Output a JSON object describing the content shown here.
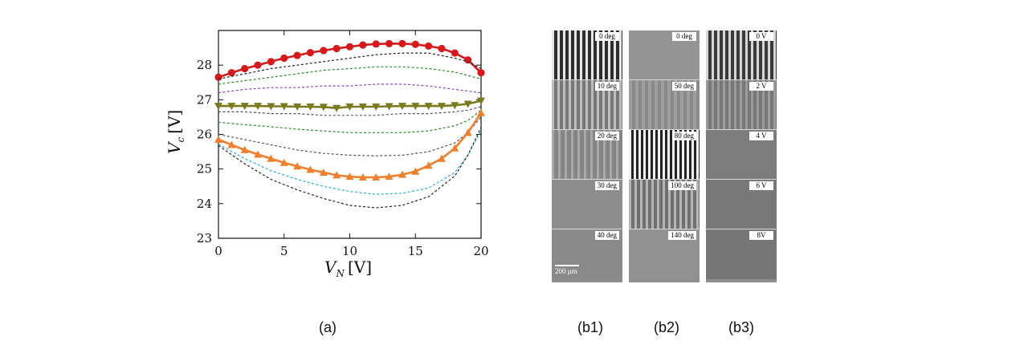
{
  "chart_data": {
    "type": "line",
    "xlabel": "V",
    "xlabel_sub": "N",
    "xlabel_unit": "[V]",
    "ylabel": "V",
    "ylabel_sub": "c",
    "ylabel_unit": "[V]",
    "xlim": [
      0,
      20
    ],
    "ylim": [
      23,
      29
    ],
    "x_ticks": [
      0,
      5,
      10,
      15,
      20
    ],
    "y_ticks": [
      23,
      24,
      25,
      26,
      27,
      28
    ],
    "grid": false,
    "series": [
      {
        "style": "marker-circle",
        "color": "#d7191c",
        "x": [
          0,
          1,
          2,
          3,
          4,
          5,
          6,
          7,
          8,
          9,
          10,
          11,
          12,
          13,
          14,
          15,
          16,
          17,
          18,
          19,
          20
        ],
        "y": [
          27.65,
          27.78,
          27.9,
          28.0,
          28.1,
          28.2,
          28.28,
          28.36,
          28.42,
          28.48,
          28.53,
          28.58,
          28.61,
          28.62,
          28.62,
          28.6,
          28.55,
          28.48,
          28.35,
          28.15,
          27.78
        ]
      },
      {
        "style": "dashed",
        "color": "#222222",
        "x": [
          0,
          2,
          4,
          6,
          8,
          10,
          12,
          14,
          16,
          18,
          19,
          20
        ],
        "y": [
          27.6,
          27.75,
          27.9,
          28.0,
          28.1,
          28.2,
          28.3,
          28.35,
          28.35,
          28.2,
          28.1,
          27.9
        ]
      },
      {
        "style": "dashed",
        "color": "#2a8a2a",
        "x": [
          0,
          2,
          4,
          6,
          8,
          10,
          12,
          14,
          16,
          18,
          20
        ],
        "y": [
          27.45,
          27.55,
          27.65,
          27.75,
          27.85,
          27.9,
          27.95,
          27.95,
          27.9,
          27.8,
          27.6
        ]
      },
      {
        "style": "dashed",
        "color": "#8a3fc9",
        "x": [
          0,
          2,
          4,
          6,
          8,
          10,
          12,
          14,
          16,
          18,
          20
        ],
        "y": [
          27.2,
          27.3,
          27.35,
          27.35,
          27.4,
          27.4,
          27.45,
          27.45,
          27.4,
          27.3,
          27.2
        ]
      },
      {
        "style": "marker-triangle-down",
        "color": "#7a7a1e",
        "x": [
          0,
          1,
          2,
          3,
          4,
          5,
          6,
          7,
          8,
          9,
          10,
          11,
          12,
          13,
          14,
          15,
          16,
          17,
          18,
          19,
          20
        ],
        "y": [
          26.82,
          26.82,
          26.82,
          26.82,
          26.81,
          26.81,
          26.8,
          26.8,
          26.79,
          26.76,
          26.8,
          26.8,
          26.8,
          26.81,
          26.82,
          26.82,
          26.82,
          26.82,
          26.84,
          26.88,
          26.97
        ]
      },
      {
        "style": "dashed",
        "color": "#555555",
        "x": [
          0,
          2,
          4,
          6,
          8,
          10,
          12,
          14,
          16,
          18,
          19,
          20
        ],
        "y": [
          26.65,
          26.65,
          26.6,
          26.6,
          26.55,
          26.55,
          26.55,
          26.6,
          26.6,
          26.65,
          26.7,
          26.8
        ]
      },
      {
        "style": "dashed",
        "color": "#2a8a2a",
        "x": [
          0,
          2,
          4,
          6,
          8,
          10,
          12,
          14,
          16,
          18,
          19,
          20
        ],
        "y": [
          26.35,
          26.28,
          26.22,
          26.15,
          26.1,
          26.05,
          26.05,
          26.05,
          26.1,
          26.25,
          26.4,
          26.7
        ]
      },
      {
        "style": "dashed",
        "color": "#555555",
        "x": [
          0,
          2,
          4,
          6,
          8,
          10,
          12,
          14,
          16,
          18,
          19,
          20
        ],
        "y": [
          26.0,
          25.85,
          25.7,
          25.55,
          25.45,
          25.4,
          25.38,
          25.4,
          25.5,
          25.75,
          26.05,
          26.5
        ]
      },
      {
        "style": "marker-triangle-up",
        "color": "#ef7f2a",
        "x": [
          0,
          1,
          2,
          3,
          4,
          5,
          6,
          7,
          8,
          9,
          10,
          11,
          12,
          13,
          14,
          15,
          16,
          17,
          18,
          19,
          20
        ],
        "y": [
          25.85,
          25.7,
          25.55,
          25.42,
          25.3,
          25.18,
          25.08,
          24.98,
          24.9,
          24.82,
          24.78,
          24.76,
          24.76,
          24.78,
          24.84,
          24.93,
          25.1,
          25.3,
          25.6,
          26.05,
          26.62
        ]
      },
      {
        "style": "dashed",
        "color": "#1ab0d8",
        "x": [
          0,
          2,
          4,
          6,
          8,
          10,
          12,
          14,
          16,
          18,
          19,
          20
        ],
        "y": [
          25.72,
          25.3,
          24.95,
          24.7,
          24.5,
          24.35,
          24.27,
          24.3,
          24.45,
          24.9,
          25.4,
          26.1
        ]
      },
      {
        "style": "dashed",
        "color": "#222222",
        "x": [
          0,
          2,
          4,
          6,
          8,
          10,
          12,
          14,
          16,
          18,
          19,
          20
        ],
        "y": [
          25.68,
          25.15,
          24.7,
          24.4,
          24.15,
          23.95,
          23.88,
          23.95,
          24.2,
          24.8,
          25.4,
          26.2
        ]
      }
    ]
  },
  "panels": [
    {
      "id": "b1",
      "labels": [
        "0 deg",
        "10 deg",
        "20 deg",
        "30 deg",
        "40 deg"
      ],
      "scale": "200 μm"
    },
    {
      "id": "b2",
      "labels": [
        "0 deg",
        "50 deg",
        "80 deg",
        "100 deg",
        "140 deg"
      ]
    },
    {
      "id": "b3",
      "labels": [
        "0 V",
        "2 V",
        "4 V",
        "6 V",
        "8V"
      ]
    }
  ],
  "captions": {
    "a": "(a)",
    "b1": "(b1)",
    "b2": "(b2)",
    "b3": "(b3)"
  }
}
